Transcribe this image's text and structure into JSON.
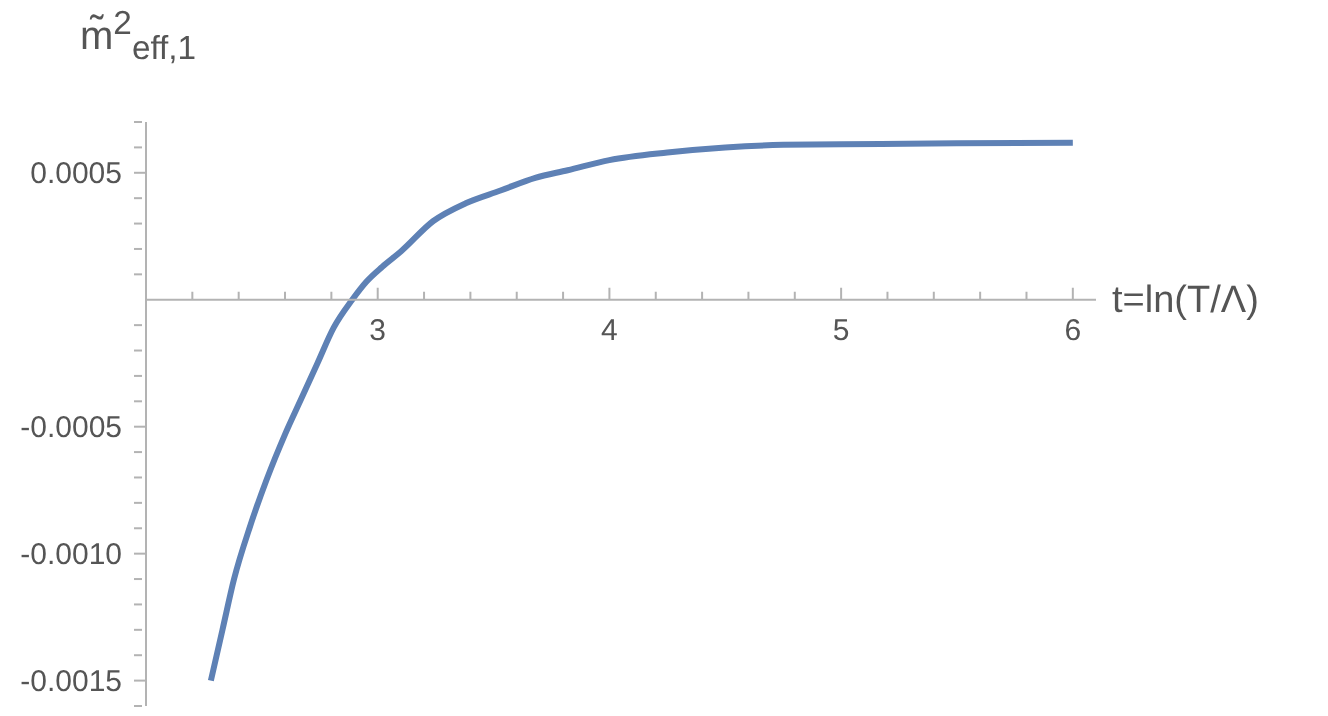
{
  "chart_data": {
    "type": "line",
    "xlabel": "t=ln(T/Λ)",
    "ylabel": "m̃$^{2}$$_{eff,1}$",
    "x": [
      2.28,
      2.33,
      2.38,
      2.45,
      2.52,
      2.6,
      2.67,
      2.74,
      2.81,
      2.89,
      2.95,
      3.02,
      3.1,
      3.24,
      3.38,
      3.53,
      3.68,
      3.82,
      4.0,
      4.25,
      4.5,
      4.75,
      5.0,
      5.5,
      6.0
    ],
    "series": [
      {
        "color": "#5e81b5",
        "values": [
          -0.0015,
          -0.0013,
          -0.0011,
          -0.00089,
          -0.00071,
          -0.00053,
          -0.00039,
          -0.00025,
          -0.00011,
          0,
          7e-05,
          0.00013,
          0.00019,
          0.00031,
          0.00038,
          0.00043,
          0.00048,
          0.00051,
          0.00055,
          0.00058,
          0.0006,
          0.00061,
          0.000612,
          0.000616,
          0.000618
        ]
      }
    ],
    "xlim": [
      2,
      6.1
    ],
    "ylim": [
      -0.0016,
      0.0007
    ],
    "xticks": [
      {
        "value": 2.2,
        "label": null
      },
      {
        "value": 2.4,
        "label": null
      },
      {
        "value": 2.6,
        "label": null
      },
      {
        "value": 2.8,
        "label": null
      },
      3,
      {
        "value": 3.2,
        "label": null
      },
      {
        "value": 3.4,
        "label": null
      },
      {
        "value": 3.6,
        "label": null
      },
      {
        "value": 3.8,
        "label": null
      },
      4,
      {
        "value": 4.2,
        "label": null
      },
      {
        "value": 4.4,
        "label": null
      },
      {
        "value": 4.6,
        "label": null
      },
      {
        "value": 4.8,
        "label": null
      },
      5,
      {
        "value": 5.2,
        "label": null
      },
      {
        "value": 5.4,
        "label": null
      },
      {
        "value": 5.6,
        "label": null
      },
      {
        "value": 5.8,
        "label": null
      },
      6
    ],
    "yticks": [
      {
        "value": -0.0016,
        "label": null
      },
      {
        "value": -0.0015,
        "label": "-0.0015"
      },
      {
        "value": -0.0014,
        "label": null
      },
      {
        "value": -0.0013,
        "label": null
      },
      {
        "value": -0.0012,
        "label": null
      },
      {
        "value": -0.0011,
        "label": null
      },
      {
        "value": -0.001,
        "label": "-0.0010"
      },
      {
        "value": -0.0009,
        "label": null
      },
      {
        "value": -0.0008,
        "label": null
      },
      {
        "value": -0.0007,
        "label": null
      },
      {
        "value": -0.0006,
        "label": null
      },
      {
        "value": -0.0005,
        "label": "-0.0005"
      },
      {
        "value": -0.0004,
        "label": null
      },
      {
        "value": -0.0003,
        "label": null
      },
      {
        "value": -0.0002,
        "label": null
      },
      {
        "value": -0.0001,
        "label": null
      },
      {
        "value": 0.0001,
        "label": null
      },
      {
        "value": 0.0002,
        "label": null
      },
      {
        "value": 0.0003,
        "label": null
      },
      {
        "value": 0.0004,
        "label": null
      },
      {
        "value": 0.0005,
        "label": "0.0005"
      },
      {
        "value": 0.0006,
        "label": null
      },
      {
        "value": 0.0007,
        "label": null
      }
    ],
    "grid": false,
    "marker": "none",
    "line_style": "solid"
  }
}
